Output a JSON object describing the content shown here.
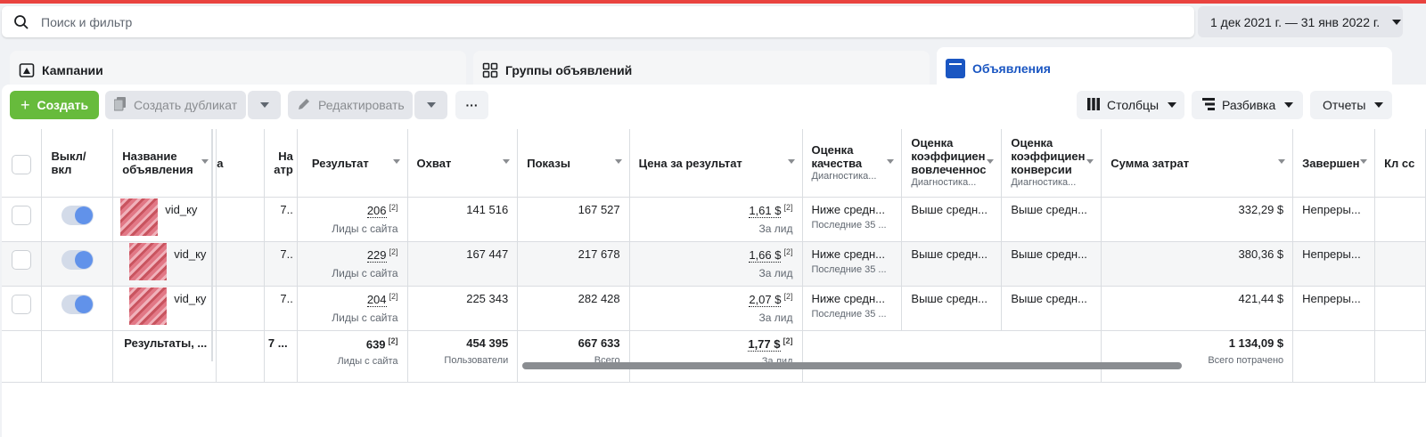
{
  "search": {
    "placeholder": "Поиск и фильтр"
  },
  "date_range": "1 дек 2021 г. — 31 янв 2022 г.",
  "tabs": [
    {
      "label": "Кампании",
      "icon": "flag-icon"
    },
    {
      "label": "Группы объявлений",
      "icon": "grid-icon"
    },
    {
      "label": "Объявления",
      "icon": "ad-window-icon"
    }
  ],
  "toolbar": {
    "create": "Создать",
    "duplicate": "Создать дубликат",
    "edit": "Редактировать",
    "more": "···",
    "columns": "Столбцы",
    "breakdown": "Разбивка",
    "reports": "Отчеты"
  },
  "columns": {
    "toggle": "Выкл/ вкл",
    "name": "Название объявления",
    "partial_a": "а",
    "partial_b": "На атр",
    "result": "Результат",
    "reach": "Охват",
    "impressions": "Показы",
    "cost": "Цена за результат",
    "quality": "Оценка качества",
    "quality_sub": "Диагностика...",
    "engagement": "Оценка коэффициен вовлеченнос",
    "engagement_sub": "Диагностика...",
    "conversion": "Оценка коэффициен конверсии",
    "conversion_sub": "Диагностика...",
    "spend": "Сумма затрат",
    "ends": "Завершен",
    "clicks": "Кл сс"
  },
  "rows": [
    {
      "name": "vid_ку",
      "attr": "7..",
      "result": "206",
      "result_sup": "[2]",
      "result_sub": "Лиды с сайта",
      "reach": "141 516",
      "impressions": "167 527",
      "cost": "1,61 $",
      "cost_sup": "[2]",
      "cost_sub": "За лид",
      "quality": "Ниже средн...",
      "quality_sub": "Последние 35 ...",
      "engagement": "Выше средн...",
      "conversion": "Выше средн...",
      "spend": "332,29 $",
      "ends": "Непреры..."
    },
    {
      "name": "vid_ку",
      "attr": "7..",
      "result": "229",
      "result_sup": "[2]",
      "result_sub": "Лиды с сайта",
      "reach": "167 447",
      "impressions": "217 678",
      "cost": "1,66 $",
      "cost_sup": "[2]",
      "cost_sub": "За лид",
      "quality": "Ниже средн...",
      "quality_sub": "Последние 35 ...",
      "engagement": "Выше средн...",
      "conversion": "Выше средн...",
      "spend": "380,36 $",
      "ends": "Непреры..."
    },
    {
      "name": "vid_ку",
      "attr": "7..",
      "result": "204",
      "result_sup": "[2]",
      "result_sub": "Лиды с сайта",
      "reach": "225 343",
      "impressions": "282 428",
      "cost": "2,07 $",
      "cost_sup": "[2]",
      "cost_sub": "За лид",
      "quality": "Ниже средн...",
      "quality_sub": "Последние 35 ...",
      "engagement": "Выше средн...",
      "conversion": "Выше средн...",
      "spend": "421,44 $",
      "ends": "Непреры..."
    }
  ],
  "totals": {
    "label": "Результаты, ...",
    "attr": "7 ...",
    "result": "639",
    "result_sup": "[2]",
    "result_sub": "Лиды с сайта",
    "reach": "454 395",
    "reach_sub": "Пользователи",
    "impressions": "667 633",
    "impressions_sub": "Всего",
    "cost": "1,77 $",
    "cost_sup": "[2]",
    "cost_sub": "За лид",
    "spend": "1 134,09 $",
    "spend_sub": "Всего потрачено"
  },
  "colors": {
    "accent": "#1a56c2",
    "create": "#67bb3c",
    "topline": "#e9433f",
    "toggle_on": "#6192ea"
  }
}
